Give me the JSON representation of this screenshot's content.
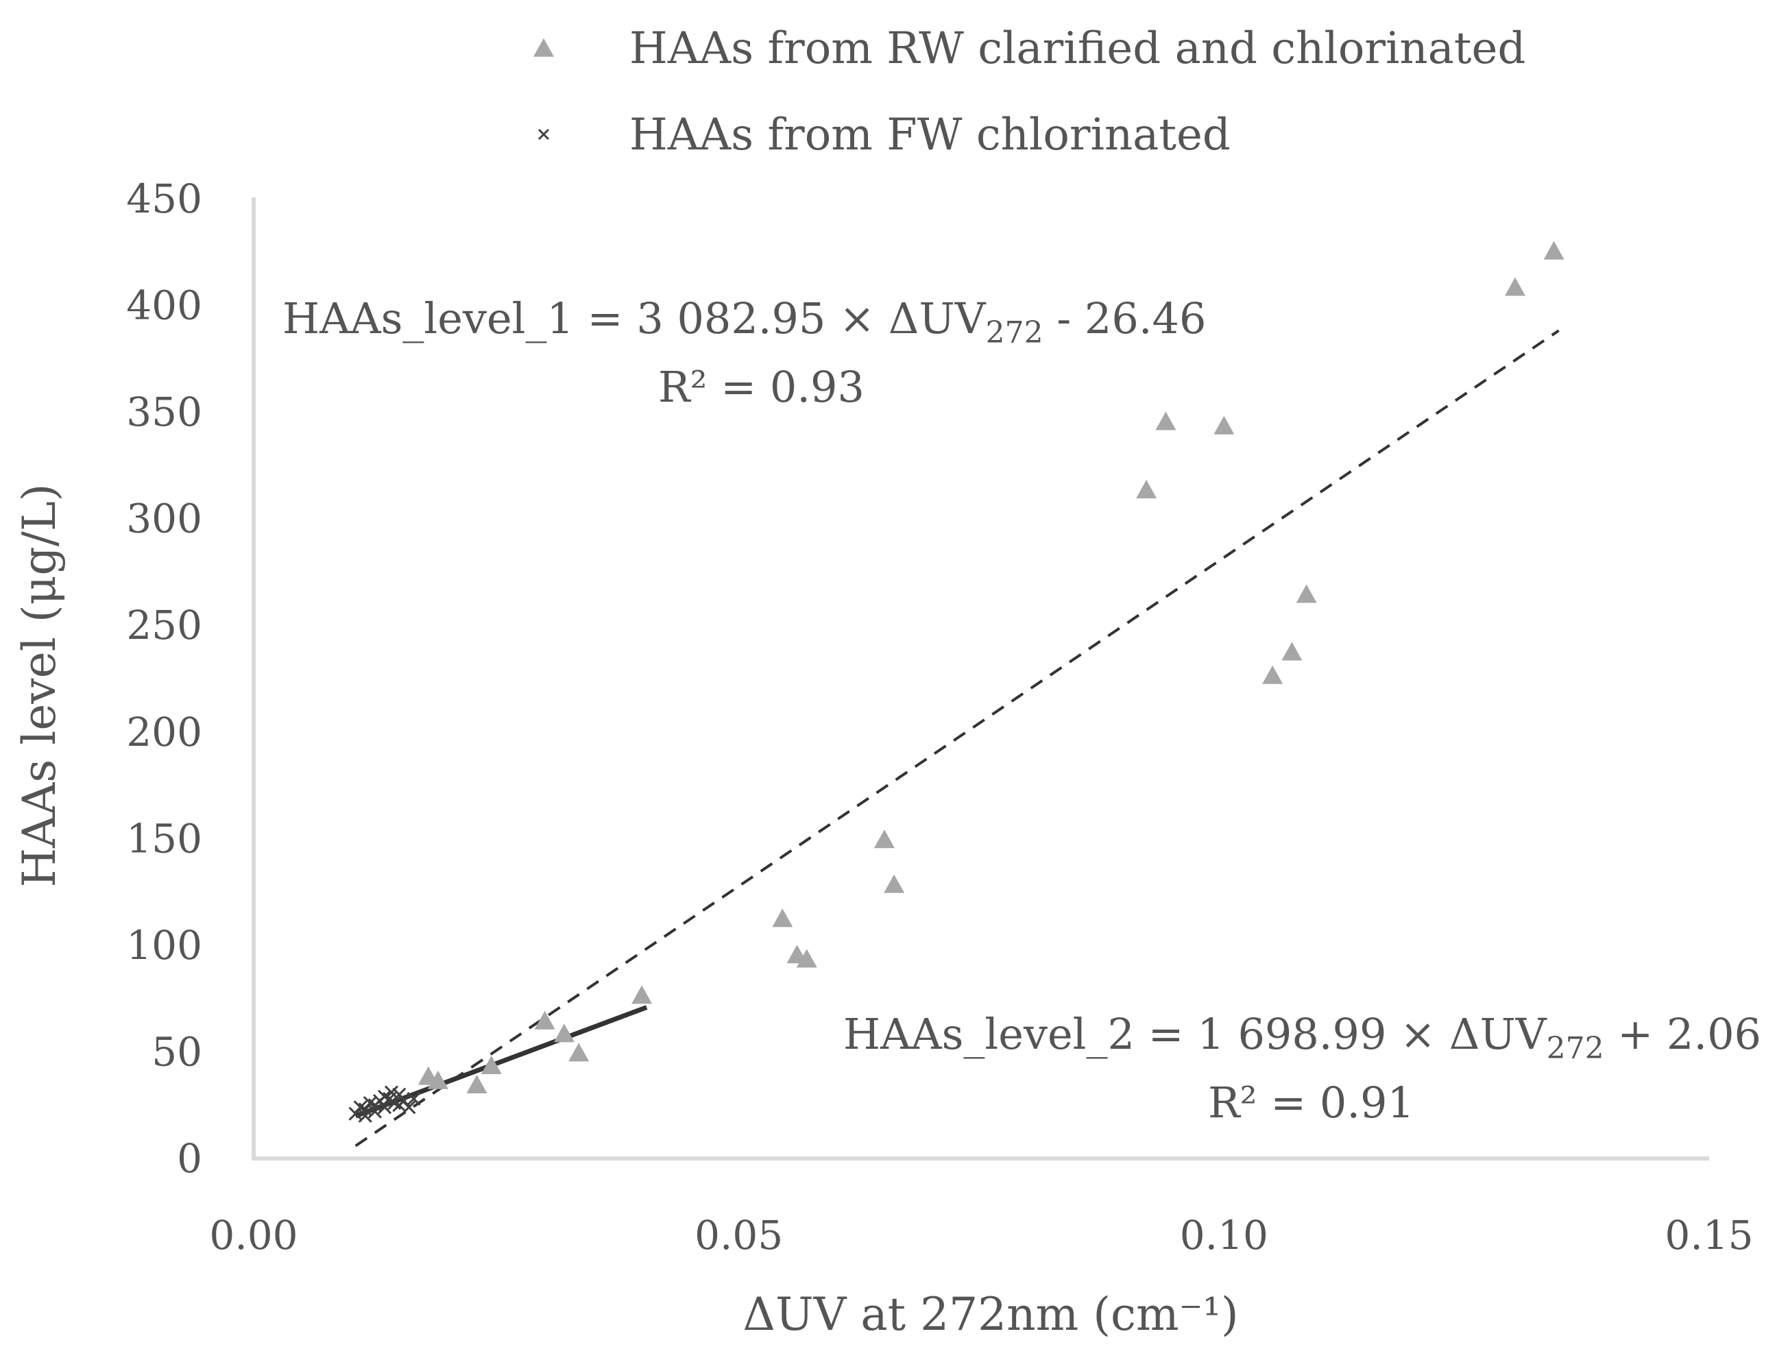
{
  "chart_data": {
    "type": "scatter",
    "title": "",
    "xlabel": "ΔUV at 272nm (cm⁻¹)",
    "ylabel": "HAAs level (μg/L)",
    "xlim": [
      0.0,
      0.15
    ],
    "ylim": [
      0,
      450
    ],
    "xticks": [
      0.0,
      0.05,
      0.1,
      0.15
    ],
    "xtick_labels": [
      "0.00",
      "0.05",
      "0.10",
      "0.15"
    ],
    "yticks": [
      0,
      50,
      100,
      150,
      200,
      250,
      300,
      350,
      400,
      450
    ],
    "ytick_labels": [
      "0",
      "50",
      "100",
      "150",
      "200",
      "250",
      "300",
      "350",
      "400",
      "450"
    ],
    "grid": false,
    "legend_position": "top",
    "series": [
      {
        "name": "HAAs from RW clarified and chlorinated",
        "marker": "triangle",
        "color": "#a6a6a6",
        "points": [
          [
            0.018,
            38
          ],
          [
            0.019,
            36
          ],
          [
            0.023,
            34
          ],
          [
            0.0245,
            43
          ],
          [
            0.03,
            64
          ],
          [
            0.032,
            58
          ],
          [
            0.0335,
            49
          ],
          [
            0.04,
            76
          ],
          [
            0.0545,
            112
          ],
          [
            0.056,
            95
          ],
          [
            0.057,
            93
          ],
          [
            0.065,
            149
          ],
          [
            0.066,
            128
          ],
          [
            0.092,
            313
          ],
          [
            0.094,
            345
          ],
          [
            0.1,
            343
          ],
          [
            0.105,
            226
          ],
          [
            0.107,
            237
          ],
          [
            0.1085,
            264
          ],
          [
            0.13,
            408
          ],
          [
            0.134,
            425
          ]
        ]
      },
      {
        "name": "HAAs from FW chlorinated",
        "marker": "x",
        "color": "#404040",
        "points": [
          [
            0.0105,
            21
          ],
          [
            0.011,
            24
          ],
          [
            0.0115,
            23
          ],
          [
            0.012,
            26
          ],
          [
            0.0125,
            25
          ],
          [
            0.013,
            27
          ],
          [
            0.0135,
            24
          ],
          [
            0.014,
            28
          ],
          [
            0.0142,
            31
          ],
          [
            0.0145,
            26
          ],
          [
            0.015,
            25
          ],
          [
            0.0155,
            27
          ],
          [
            0.016,
            24
          ],
          [
            0.0165,
            28
          ],
          [
            0.0115,
            20
          ],
          [
            0.0125,
            22
          ],
          [
            0.0135,
            29
          ],
          [
            0.015,
            30
          ]
        ]
      }
    ],
    "trendlines": [
      {
        "name": "trendline-1",
        "style": "dashed",
        "color": "#333333",
        "slope": 3082.95,
        "intercept": -26.46,
        "x_range": [
          0.0105,
          0.1345
        ]
      },
      {
        "name": "trendline-2",
        "style": "solid",
        "color": "#333333",
        "slope": 1698.99,
        "intercept": 2.06,
        "x_range": [
          0.0105,
          0.0405
        ]
      }
    ],
    "annotations": {
      "eq1": {
        "prefix": "HAAs_level_1 = 3 082.95 × ΔUV",
        "sub": "272",
        "suffix": " - 26.46",
        "r2": "R² = 0.93"
      },
      "eq2": {
        "prefix": "HAAs_level_2 = 1 698.99 × ΔUV",
        "sub": "272",
        "suffix": " + 2.06",
        "r2": "R² = 0.91"
      }
    }
  }
}
